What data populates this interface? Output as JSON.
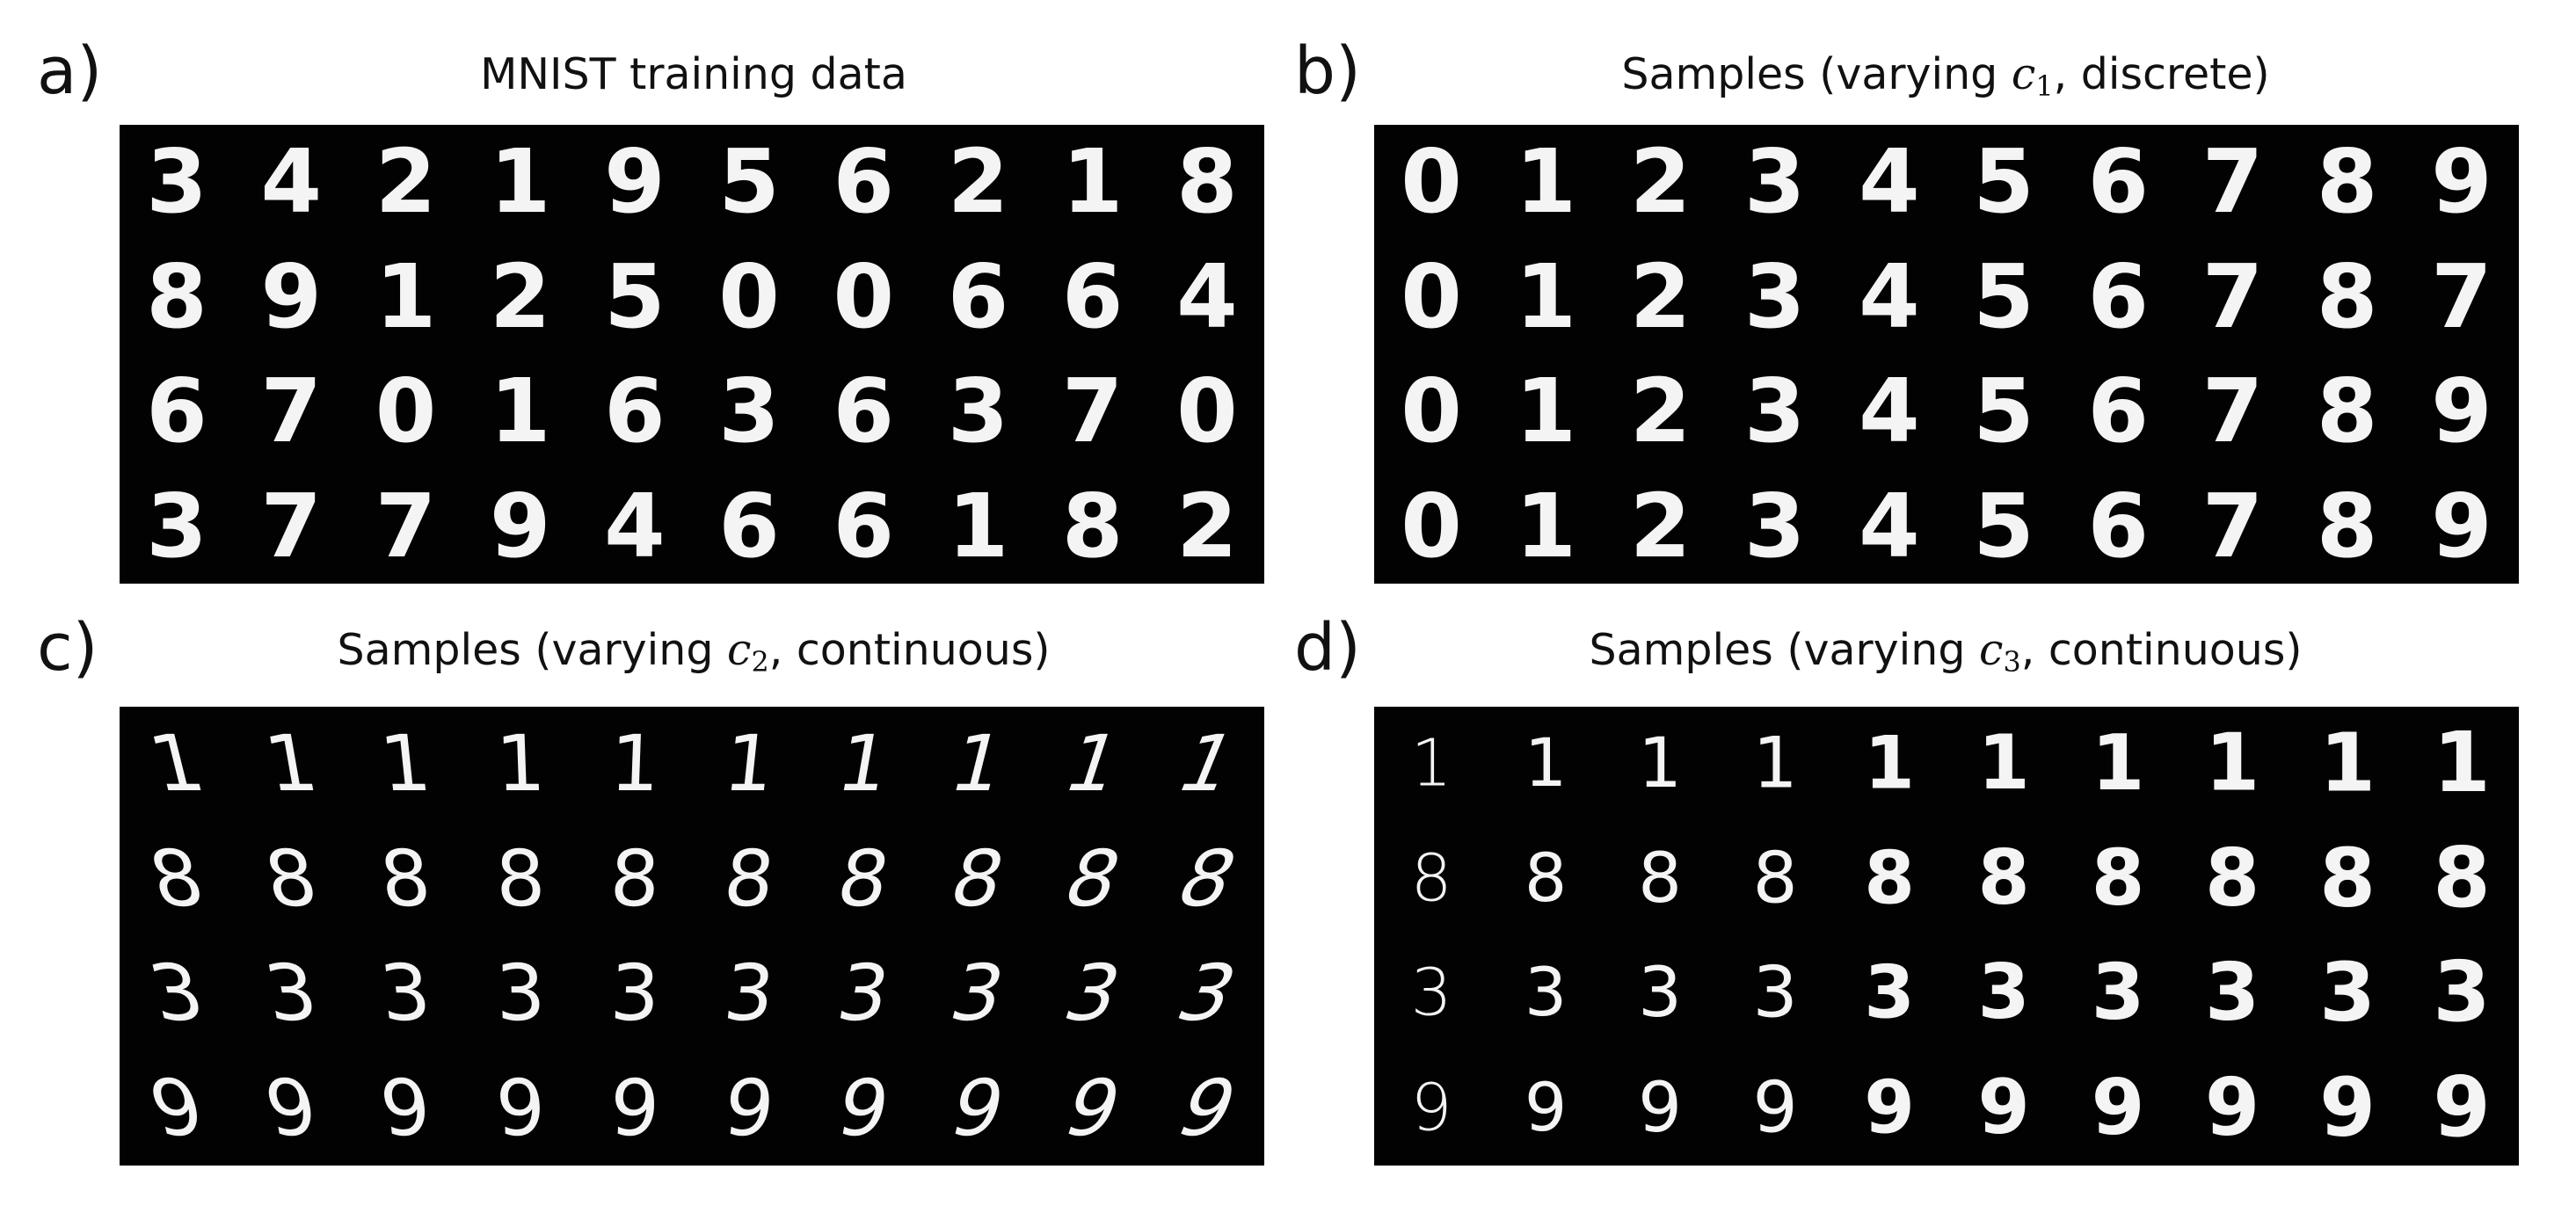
{
  "panels": [
    {
      "id": "a",
      "letter": "a)",
      "title": "MNIST training data",
      "digits": [
        [
          "3",
          "4",
          "2",
          "1",
          "9",
          "5",
          "6",
          "2",
          "1",
          "8"
        ],
        [
          "8",
          "9",
          "1",
          "2",
          "5",
          "0",
          "0",
          "6",
          "6",
          "4"
        ],
        [
          "6",
          "7",
          "0",
          "1",
          "6",
          "3",
          "6",
          "3",
          "7",
          "0"
        ],
        [
          "3",
          "7",
          "7",
          "9",
          "4",
          "6",
          "6",
          "1",
          "8",
          "2"
        ]
      ]
    },
    {
      "id": "b",
      "letter": "b)",
      "title_prefix": "Samples (varying ",
      "title_var": "c",
      "title_sub": "1",
      "title_suffix": ", discrete)",
      "digits": [
        [
          "0",
          "1",
          "2",
          "3",
          "4",
          "5",
          "6",
          "7",
          "8",
          "9"
        ],
        [
          "0",
          "1",
          "2",
          "3",
          "4",
          "5",
          "6",
          "7",
          "8",
          "7"
        ],
        [
          "0",
          "1",
          "2",
          "3",
          "4",
          "5",
          "6",
          "7",
          "8",
          "9"
        ],
        [
          "0",
          "1",
          "2",
          "3",
          "4",
          "5",
          "6",
          "7",
          "8",
          "9"
        ]
      ]
    },
    {
      "id": "c",
      "letter": "c)",
      "title_prefix": "Samples (varying ",
      "title_var": "c",
      "title_sub": "2",
      "title_suffix": ", continuous)",
      "slant_from_deg": -14,
      "slant_to_deg": 22,
      "digits": [
        [
          "1",
          "1",
          "1",
          "1",
          "1",
          "1",
          "1",
          "1",
          "1",
          "1"
        ],
        [
          "8",
          "8",
          "8",
          "8",
          "8",
          "8",
          "8",
          "8",
          "8",
          "8"
        ],
        [
          "3",
          "3",
          "3",
          "3",
          "3",
          "3",
          "3",
          "3",
          "3",
          "3"
        ],
        [
          "9",
          "9",
          "9",
          "9",
          "9",
          "9",
          "9",
          "9",
          "9",
          "9"
        ]
      ]
    },
    {
      "id": "d",
      "letter": "d)",
      "title_prefix": "Samples (varying ",
      "title_var": "c",
      "title_sub": "3",
      "title_suffix": ", continuous)",
      "weight_from": 300,
      "weight_to": 900,
      "digits": [
        [
          "1",
          "1",
          "1",
          "1",
          "1",
          "1",
          "1",
          "1",
          "1",
          "1"
        ],
        [
          "8",
          "8",
          "8",
          "8",
          "8",
          "8",
          "8",
          "8",
          "8",
          "8"
        ],
        [
          "3",
          "3",
          "3",
          "3",
          "3",
          "3",
          "3",
          "3",
          "3",
          "3"
        ],
        [
          "9",
          "9",
          "9",
          "9",
          "9",
          "9",
          "9",
          "9",
          "9",
          "9"
        ]
      ]
    }
  ]
}
